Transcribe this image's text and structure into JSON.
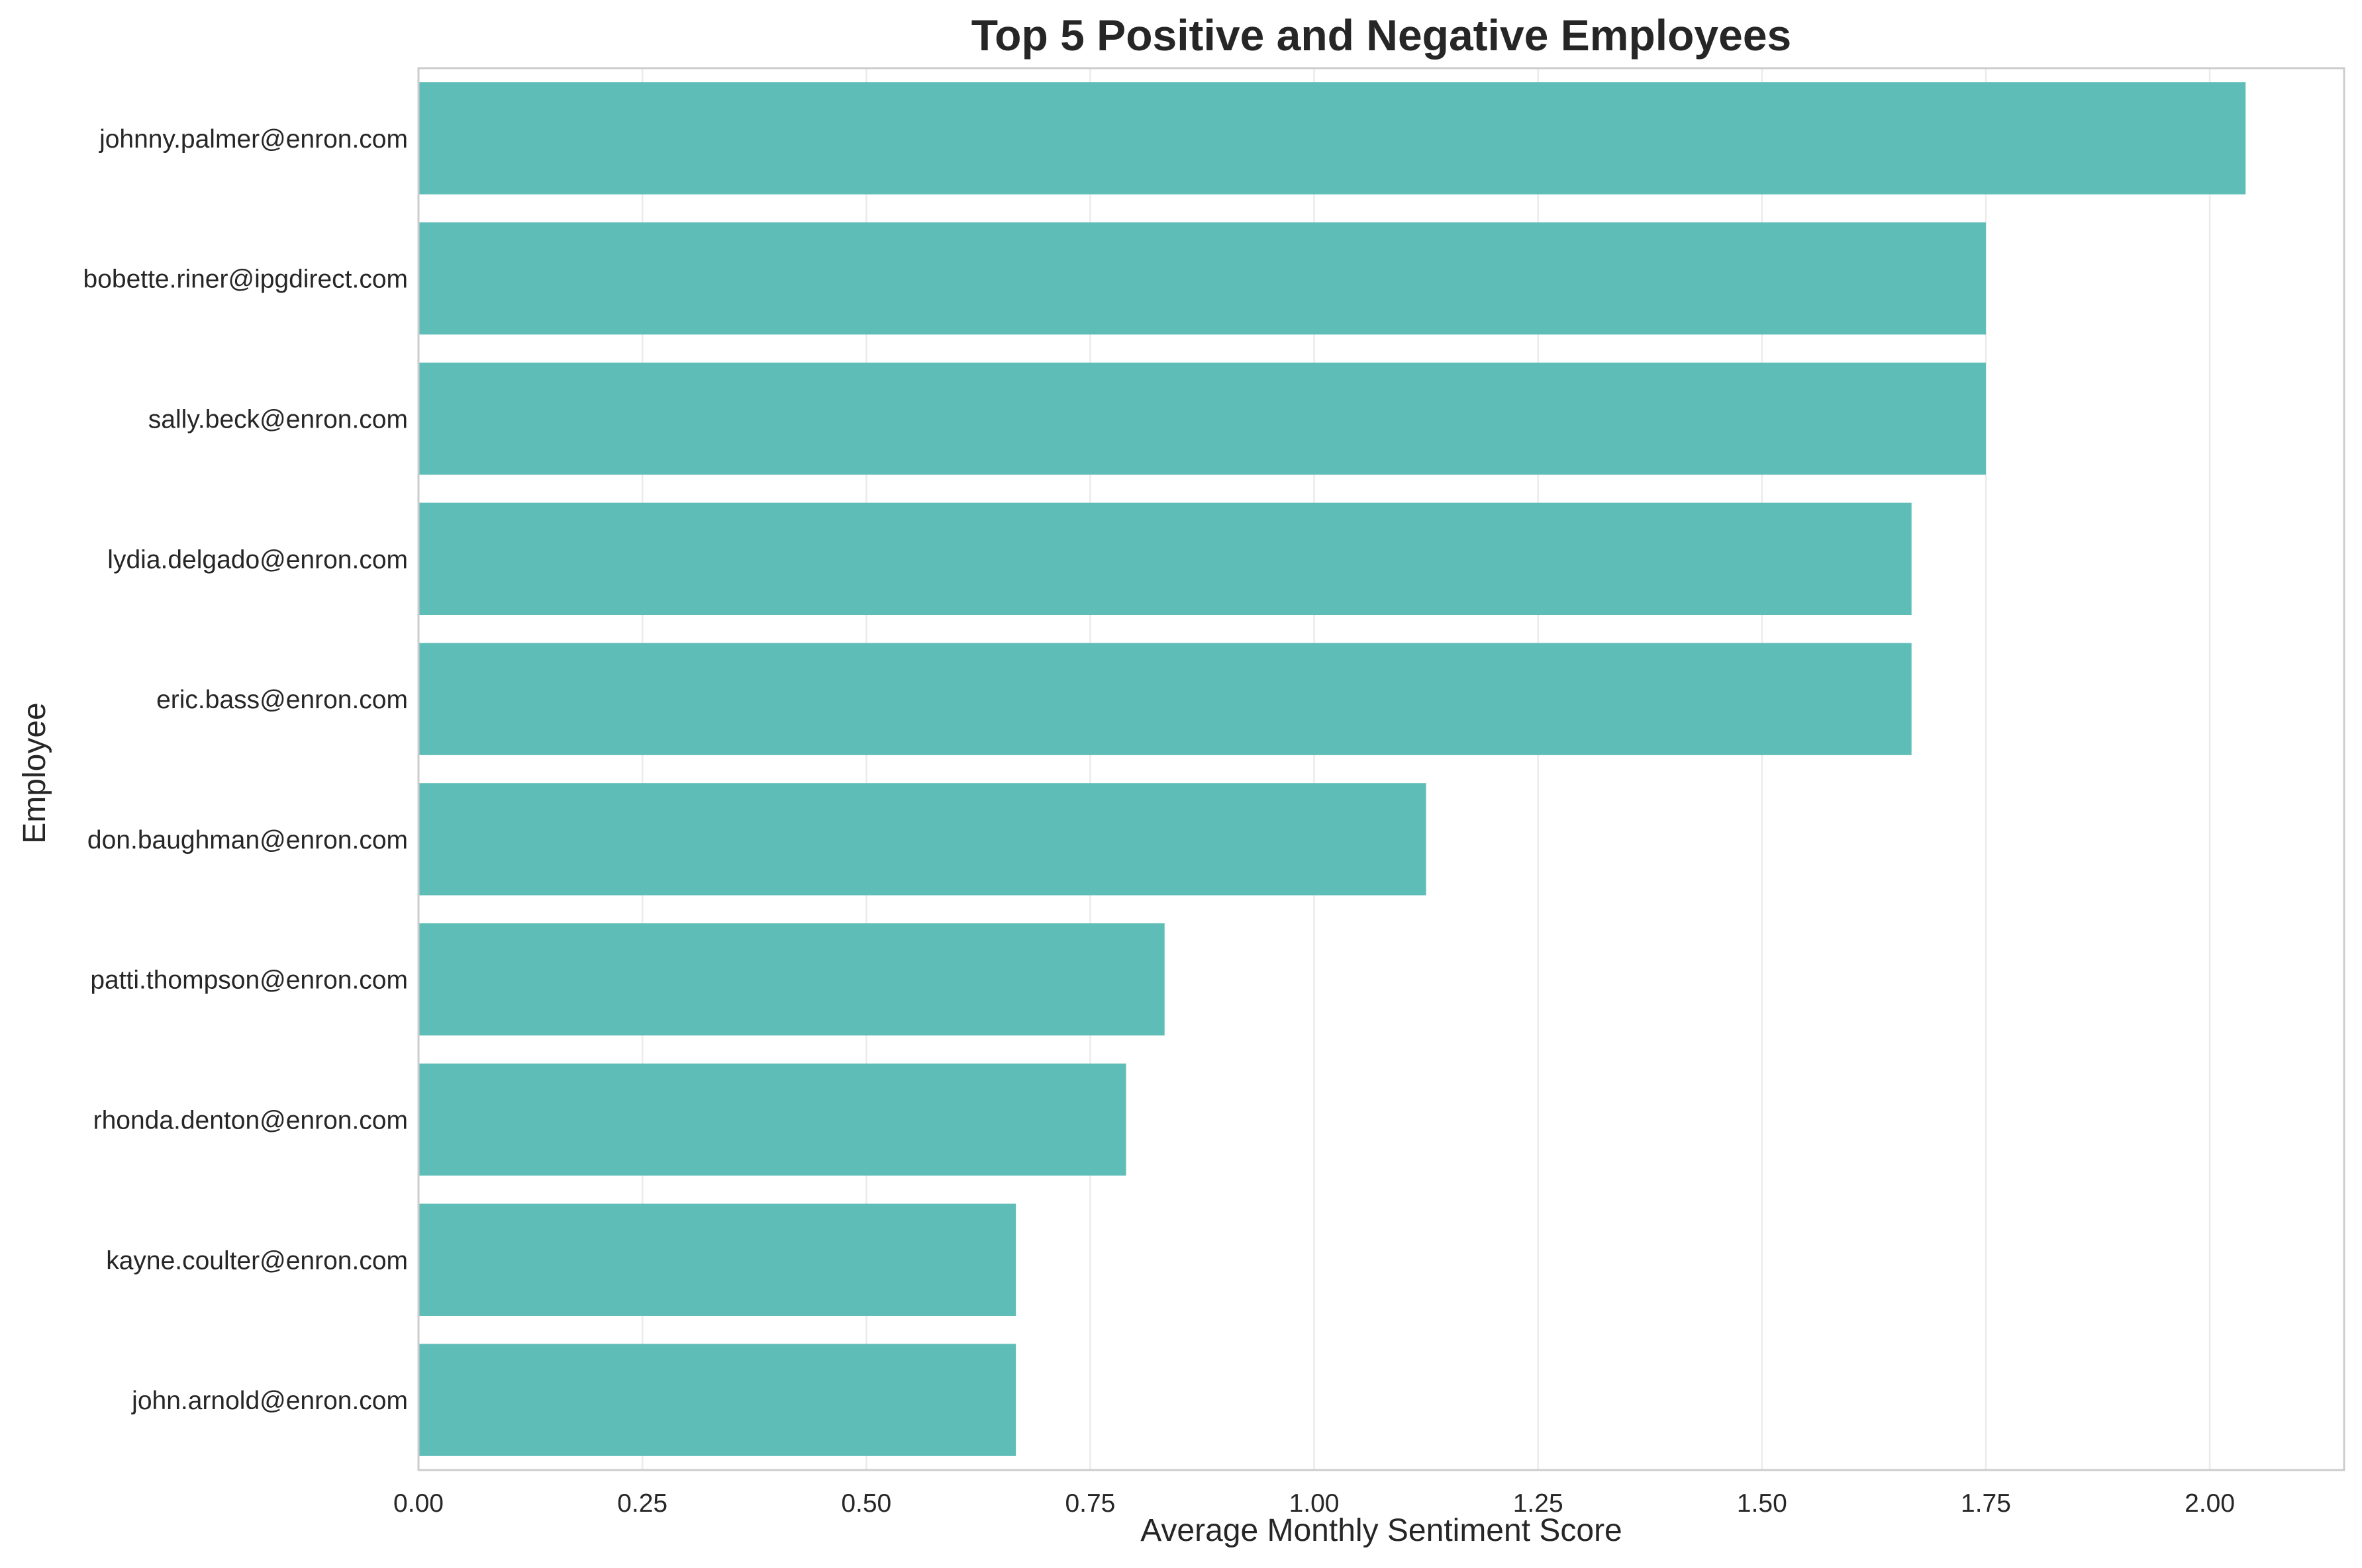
{
  "chart_data": {
    "type": "bar",
    "orientation": "horizontal",
    "title": "Top 5 Positive and Negative Employees",
    "xlabel": "Average Monthly Sentiment Score",
    "ylabel": "Employee",
    "xlim": [
      0,
      2.15
    ],
    "xticks": [
      "0.00",
      "0.25",
      "0.50",
      "0.75",
      "1.00",
      "1.25",
      "1.50",
      "1.75",
      "2.00"
    ],
    "xtick_values": [
      0,
      0.25,
      0.5,
      0.75,
      1.0,
      1.25,
      1.5,
      1.75,
      2.0
    ],
    "grid": true,
    "bar_color": "#5fbdb7",
    "categories": [
      "johnny.palmer@enron.com",
      "bobette.riner@ipgdirect.com",
      "sally.beck@enron.com",
      "lydia.delgado@enron.com",
      "eric.bass@enron.com",
      "don.baughman@enron.com",
      "patti.thompson@enron.com",
      "rhonda.denton@enron.com",
      "kayne.coulter@enron.com",
      "john.arnold@enron.com"
    ],
    "values": [
      2.04,
      1.75,
      1.75,
      1.667,
      1.667,
      1.125,
      0.833,
      0.79,
      0.667,
      0.667
    ]
  }
}
